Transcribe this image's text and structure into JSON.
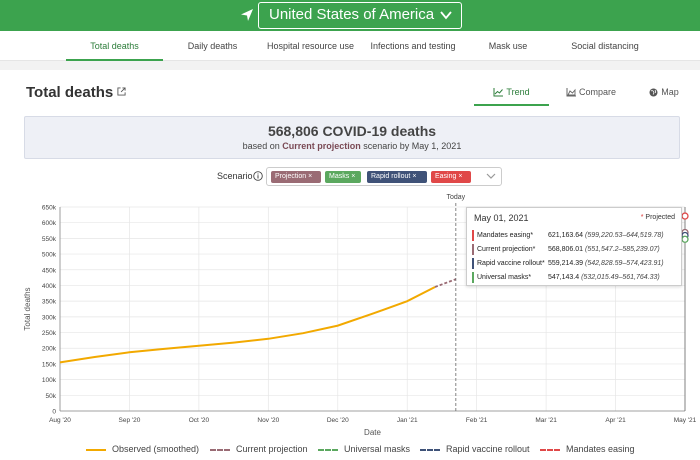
{
  "header": {
    "country": "United States of America"
  },
  "nav": {
    "tabs": [
      "Total deaths",
      "Daily deaths",
      "Hospital resource use",
      "Infections and testing",
      "Mask use",
      "Social distancing"
    ]
  },
  "page": {
    "title": "Total deaths"
  },
  "views": {
    "trend": "Trend",
    "compare": "Compare",
    "map": "Map"
  },
  "summary": {
    "headline": "568,806 COVID-19 deaths",
    "sub_prefix": "based on",
    "sub_scenario": "Current projection",
    "sub_suffix": "scenario by May 1, 2021"
  },
  "scenario": {
    "label": "Scenario",
    "chips": [
      {
        "label": "Projection",
        "color": "#9a6b74"
      },
      {
        "label": "Masks",
        "color": "#5ba85f"
      },
      {
        "label": "Rapid rollout",
        "color": "#3f5278"
      },
      {
        "label": "Easing",
        "color": "#e04848"
      }
    ]
  },
  "tooltip": {
    "date": "May 01, 2021",
    "projected_label": "Projected",
    "rows": [
      {
        "label": "Mandates easing*",
        "value": "621,163.64",
        "range": "(599,220.53–644,519.78)",
        "color": "#e04848"
      },
      {
        "label": "Current projection*",
        "value": "568,806.01",
        "range": "(551,547.2–585,239.07)",
        "color": "#9a6b74"
      },
      {
        "label": "Rapid vaccine rollout*",
        "value": "559,214.39",
        "range": "(542,828.59–574,423.91)",
        "color": "#3f5278"
      },
      {
        "label": "Universal masks*",
        "value": "547,143.4",
        "range": "(532,015.49–561,764.33)",
        "color": "#5ba85f"
      }
    ]
  },
  "chart_data": {
    "type": "line",
    "ylabel": "Total deaths",
    "xlabel": "Date",
    "today_label": "Today",
    "ylim": [
      0,
      650000
    ],
    "yticks": [
      "0",
      "50k",
      "100k",
      "150k",
      "200k",
      "250k",
      "300k",
      "350k",
      "400k",
      "450k",
      "500k",
      "550k",
      "600k",
      "650k"
    ],
    "xticks": [
      "Aug '20",
      "Sep '20",
      "Oct '20",
      "Nov '20",
      "Dec '20",
      "Jan '21",
      "Feb '21",
      "Mar '21",
      "Apr '21",
      "May '21"
    ],
    "grid": true,
    "legend_position": "bottom",
    "series": [
      {
        "name": "Observed (smoothed)",
        "color": "#f2a900",
        "style": "solid",
        "points": [
          [
            0,
            155000
          ],
          [
            0.5,
            172000
          ],
          [
            1,
            187000
          ],
          [
            1.5,
            198000
          ],
          [
            2,
            208000
          ],
          [
            2.5,
            218000
          ],
          [
            3,
            230000
          ],
          [
            3.5,
            248000
          ],
          [
            4,
            272000
          ],
          [
            4.5,
            310000
          ],
          [
            5,
            350000
          ],
          [
            5.4,
            395000
          ]
        ]
      },
      {
        "name": "Current projection",
        "color": "#9a6b74",
        "style": "dashed",
        "points": [
          [
            5.4,
            395000
          ],
          [
            5.7,
            420000
          ]
        ]
      },
      {
        "name": "Universal masks",
        "color": "#5ba85f",
        "style": "dashed",
        "points": []
      },
      {
        "name": "Rapid vaccine rollout",
        "color": "#3f5278",
        "style": "dashed",
        "points": []
      },
      {
        "name": "Mandates easing",
        "color": "#e04848",
        "style": "dashed",
        "points": []
      }
    ],
    "endpoint_values": [
      621163.64,
      568806.01,
      559214.39,
      547143.4
    ],
    "today_x": 5.7
  }
}
